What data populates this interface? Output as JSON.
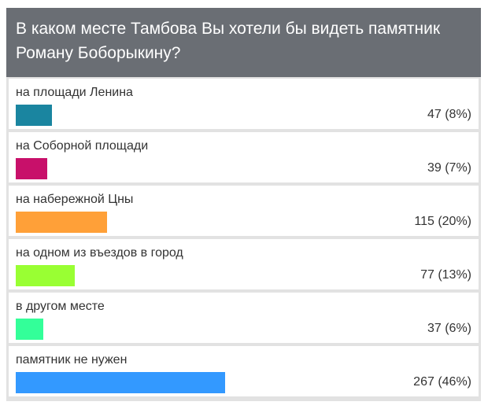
{
  "poll": {
    "question": "В каком месте Тамбова Вы хотели бы видеть памятник Роману Боборыкину?",
    "options": [
      {
        "label": "на площади Ленина",
        "result": "47 (8%)",
        "votes": 47,
        "percent": 8,
        "color": "#1a85a0"
      },
      {
        "label": "на Соборной площади",
        "result": "39 (7%)",
        "votes": 39,
        "percent": 7,
        "color": "#c8106a"
      },
      {
        "label": "на набережной Цны",
        "result": "115 (20%)",
        "votes": 115,
        "percent": 20,
        "color": "#ffa038"
      },
      {
        "label": "на одном из въездов в город",
        "result": "77 (13%)",
        "votes": 77,
        "percent": 13,
        "color": "#99ff33"
      },
      {
        "label": "в другом месте",
        "result": "37 (6%)",
        "votes": 37,
        "percent": 6,
        "color": "#33ff99"
      },
      {
        "label": "памятник не нужен",
        "result": "267 (46%)",
        "votes": 267,
        "percent": 46,
        "color": "#3399ff"
      }
    ]
  }
}
